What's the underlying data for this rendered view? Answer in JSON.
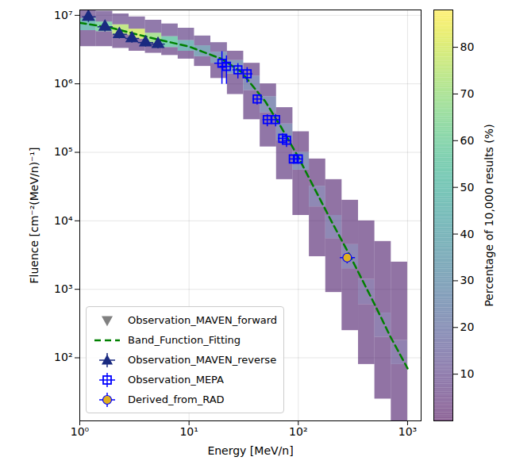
{
  "chart_data": {
    "type": "scatter",
    "xlabel": "Energy [MeV/n]",
    "ylabel": "Fluence [cm⁻²(MeV/n)⁻¹]",
    "log": true,
    "grid": true,
    "legend": "lower left",
    "xlim": [
      1,
      1330
    ],
    "ylim": [
      12,
      12000000
    ],
    "xticks": [
      {
        "value": 1,
        "label": "10⁰"
      },
      {
        "value": 10,
        "label": "10¹"
      },
      {
        "value": 100,
        "label": "10²"
      },
      {
        "value": 1000,
        "label": "10³"
      }
    ],
    "yticks": [
      {
        "value": 100,
        "label": "10²"
      },
      {
        "value": 1000,
        "label": "10³"
      },
      {
        "value": 10000,
        "label": "10⁴"
      },
      {
        "value": 100000,
        "label": "10⁵"
      },
      {
        "value": 1000000,
        "label": "10⁶"
      },
      {
        "value": 10000000,
        "label": "10⁷"
      }
    ],
    "series": [
      {
        "name": "Observation_MAVEN_forward",
        "type": "scatter",
        "marker": "triangle_down",
        "color": "#808080",
        "x": [],
        "values": []
      },
      {
        "name": "Band_Function_Fitting",
        "type": "line",
        "line_style": "dashed",
        "color": "#008000",
        "x": [
          1,
          2,
          3,
          5,
          10,
          20,
          30,
          50,
          70,
          100,
          200,
          300,
          500,
          700,
          1000
        ],
        "values": [
          7800000,
          6500000,
          5500000,
          4500000,
          3500000,
          2300000,
          1500000,
          550000,
          230000,
          85000,
          10000,
          3000,
          600,
          200,
          70
        ]
      },
      {
        "name": "Observation_MAVEN_reverse",
        "type": "scatter",
        "marker": "triangle",
        "color": "#1a2a80",
        "x": [
          1.2,
          1.7,
          2.3,
          3.0,
          4.0,
          5.2
        ],
        "values": [
          9500000,
          6800000,
          5300000,
          4600000,
          4000000,
          3800000
        ],
        "x_low": [
          1.05,
          1.45,
          2.0,
          2.6,
          3.4,
          4.5
        ],
        "x_high": [
          1.4,
          2.0,
          2.7,
          3.5,
          4.7,
          6.0
        ],
        "y_low": [
          8000000,
          5800000,
          4600000,
          4000000,
          3500000,
          3300000
        ],
        "y_high": [
          11500000,
          7800000,
          6100000,
          5200000,
          4500000,
          4300000
        ]
      },
      {
        "name": "Observation_MEPA",
        "type": "scatter",
        "marker": "square",
        "color": "#0000ff",
        "x": [
          20,
          22,
          28,
          34,
          42,
          52,
          62,
          72,
          78,
          90,
          100
        ],
        "values": [
          2000000,
          1800000,
          1600000,
          1400000,
          600000,
          300000,
          300000,
          160000,
          150000,
          80000,
          80000
        ],
        "x_low": [
          17,
          19,
          25,
          31,
          38,
          47,
          56,
          65,
          71,
          82,
          92
        ],
        "x_high": [
          23,
          25,
          31,
          38,
          47,
          58,
          68,
          79,
          86,
          98,
          110
        ],
        "y_low": [
          1000000,
          1000000,
          1200000,
          1050000,
          500000,
          240000,
          240000,
          130000,
          120000,
          68000,
          68000
        ],
        "y_high": [
          3000000,
          2600000,
          2000000,
          1750000,
          700000,
          360000,
          360000,
          190000,
          180000,
          92000,
          92000
        ]
      },
      {
        "name": "Derived_from_RAD",
        "type": "scatter",
        "marker": "circle",
        "color": "#e0b020",
        "x": [
          280
        ],
        "values": [
          2900
        ],
        "x_low": [
          240
        ],
        "x_high": [
          330
        ],
        "y_low": [
          2400
        ],
        "y_high": [
          3400
        ]
      }
    ],
    "heatmap": {
      "x_edges": [
        1,
        1.41,
        2,
        2.82,
        3.98,
        5.62,
        7.94,
        11.2,
        15.8,
        22.4,
        31.6,
        44.7,
        63.1,
        89.1,
        126,
        178,
        251,
        355,
        501,
        708,
        1000
      ],
      "columns": [
        {
          "y_edges": [
            3500000,
            6000000,
            9000000,
            12000000
          ],
          "values": [
            6,
            45,
            8
          ]
        },
        {
          "y_edges": [
            3500000,
            5800000,
            8000000,
            11500000
          ],
          "values": [
            6,
            60,
            8
          ]
        },
        {
          "y_edges": [
            3300000,
            5200000,
            7300000,
            10500000
          ],
          "values": [
            6,
            75,
            8
          ]
        },
        {
          "y_edges": [
            3000000,
            4500000,
            6300000,
            9500000
          ],
          "values": [
            6,
            80,
            8
          ]
        },
        {
          "y_edges": [
            2800000,
            3900000,
            5500000,
            8500000
          ],
          "values": [
            6,
            70,
            8
          ]
        },
        {
          "y_edges": [
            2600000,
            3400000,
            4900000,
            7500000
          ],
          "values": [
            6,
            55,
            8
          ]
        },
        {
          "y_edges": [
            2300000,
            3000000,
            4300000,
            6500000
          ],
          "values": [
            6,
            40,
            8
          ]
        },
        {
          "y_edges": [
            1800000,
            2500000,
            3600000,
            5000000
          ],
          "values": [
            6,
            30,
            8
          ]
        },
        {
          "y_edges": [
            1200000,
            2000000,
            2900000,
            4000000
          ],
          "values": [
            6,
            25,
            8
          ]
        },
        {
          "y_edges": [
            700000,
            1400000,
            2200000,
            3000000
          ],
          "values": [
            6,
            25,
            6
          ]
        },
        {
          "y_edges": [
            300000,
            800000,
            1300000,
            2000000
          ],
          "values": [
            6,
            20,
            6
          ]
        },
        {
          "y_edges": [
            120000,
            380000,
            650000,
            1000000
          ],
          "values": [
            6,
            20,
            6
          ]
        },
        {
          "y_edges": [
            40000,
            150000,
            260000,
            450000
          ],
          "values": [
            6,
            20,
            6
          ]
        },
        {
          "y_edges": [
            12000,
            55000,
            100000,
            200000
          ],
          "values": [
            5,
            20,
            5
          ]
        },
        {
          "y_edges": [
            3000,
            16000,
            32000,
            80000
          ],
          "values": [
            5,
            15,
            5
          ]
        },
        {
          "y_edges": [
            900,
            5500,
            12000,
            40000
          ],
          "values": [
            5,
            15,
            5
          ]
        },
        {
          "y_edges": [
            250,
            2000,
            4500,
            20000
          ],
          "values": [
            5,
            15,
            5
          ]
        },
        {
          "y_edges": [
            80,
            600,
            1400,
            10000
          ],
          "values": [
            5,
            12,
            5
          ]
        },
        {
          "y_edges": [
            25,
            200,
            450,
            5000
          ],
          "values": [
            5,
            12,
            5
          ]
        },
        {
          "y_edges": [
            12,
            80,
            180,
            2500
          ],
          "values": [
            5,
            12,
            5
          ]
        }
      ]
    },
    "colorbar": {
      "label": "Percentage of 10,000 results (%)",
      "range": [
        0,
        88
      ],
      "ticks": [
        10,
        20,
        30,
        40,
        50,
        60,
        70,
        80
      ]
    }
  }
}
